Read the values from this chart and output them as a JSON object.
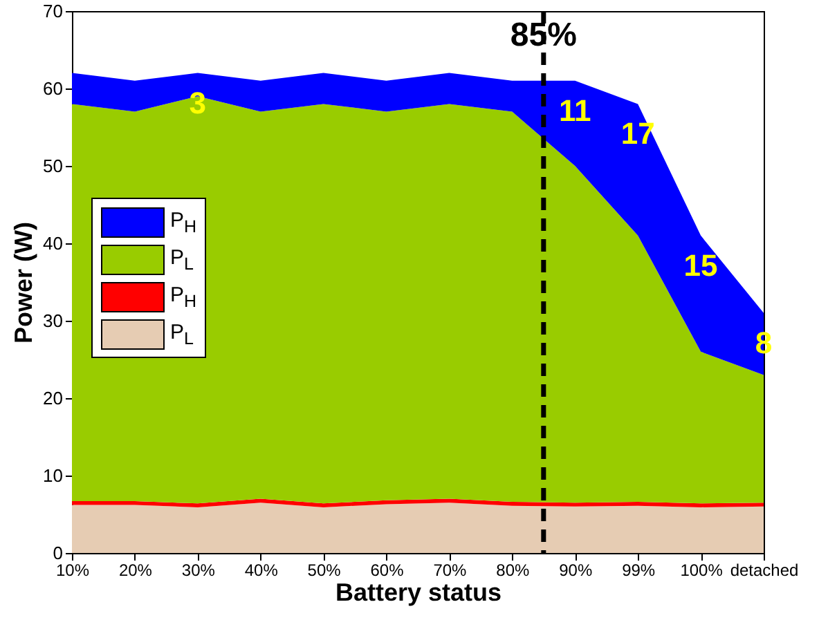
{
  "chart_data": {
    "type": "area",
    "stacked": true,
    "xlabel": "Battery status",
    "ylabel": "Power (W)",
    "categories": [
      "10%",
      "20%",
      "30%",
      "40%",
      "50%",
      "60%",
      "70%",
      "80%",
      "90%",
      "99%",
      "100%",
      "detached"
    ],
    "ylim": [
      0,
      70
    ],
    "yticks": [
      0,
      10,
      20,
      30,
      40,
      50,
      60,
      70
    ],
    "legend": "left",
    "series": [
      {
        "name": "P$_{L}$",
        "color": "#e6ccb3",
        "values": [
          6.2,
          6.2,
          5.9,
          6.5,
          5.9,
          6.3,
          6.5,
          6.1,
          6.0,
          6.1,
          5.9,
          6.0
        ]
      },
      {
        "name": "P$_{H}$",
        "color": "#ff0000",
        "values": [
          0.5,
          0.5,
          0.5,
          0.5,
          0.5,
          0.5,
          0.5,
          0.5,
          0.5,
          0.5,
          0.5,
          0.5
        ]
      },
      {
        "name": "P$_{L}$",
        "color": "#99cc00",
        "values": [
          51.3,
          50.3,
          52.6,
          50.0,
          51.6,
          50.2,
          51.0,
          50.4,
          43.5,
          34.4,
          19.6,
          16.5
        ]
      },
      {
        "name": "P$_{H}$",
        "color": "#0000ff",
        "values": [
          4,
          4,
          3,
          4,
          4,
          4,
          4,
          4,
          11,
          17,
          15,
          8
        ]
      }
    ],
    "ref_lines": [
      {
        "axis": "x",
        "value": "85%",
        "line_style": "dashed",
        "color": "#000000"
      }
    ],
    "annotations": [
      {
        "text": "3",
        "x": "30%",
        "y": 62
      },
      {
        "text": "11",
        "x": "90%",
        "y": 61
      },
      {
        "text": "17",
        "x": "99%",
        "y": 58
      },
      {
        "text": "15",
        "x": "100%",
        "y": 41
      },
      {
        "text": "8",
        "x": "detached",
        "y": 31
      }
    ]
  }
}
